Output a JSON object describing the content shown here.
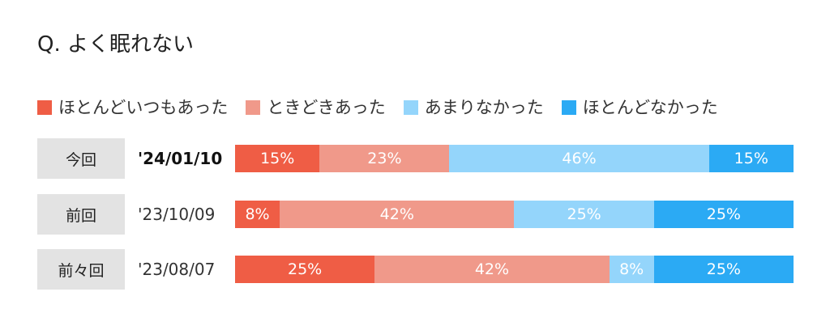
{
  "title": "Q. よく眠れない",
  "colors": [
    "#ef5d45",
    "#f0998a",
    "#94d5fb",
    "#2baaf4"
  ],
  "chart_data": {
    "type": "bar",
    "orientation": "horizontal",
    "stacked": true,
    "unit": "%",
    "title": "Q. よく眠れない",
    "legend_position": "top",
    "series": [
      {
        "name": "ほとんどいつもあった",
        "values": [
          15,
          8,
          25
        ]
      },
      {
        "name": "ときどきあった",
        "values": [
          23,
          42,
          42
        ]
      },
      {
        "name": "あまりなかった",
        "values": [
          46,
          25,
          8
        ]
      },
      {
        "name": "ほとんどなかった",
        "values": [
          15,
          25,
          25
        ]
      }
    ],
    "rows": [
      {
        "label": "今回",
        "date": "'24/01/10"
      },
      {
        "label": "前回",
        "date": "'23/10/09"
      },
      {
        "label": "前々回",
        "date": "'23/08/07"
      }
    ]
  }
}
